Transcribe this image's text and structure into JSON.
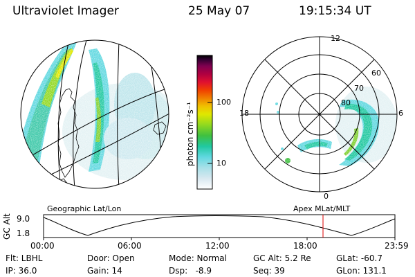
{
  "header": {
    "title": "Ultraviolet Imager",
    "date": "25 May 07",
    "time": "19:15:34 UT"
  },
  "left_panel": {
    "label": "Geographic Lat/Lon"
  },
  "right_panel": {
    "label": "Apex MLat/MLT",
    "mlt_labels": [
      "12",
      "18",
      "6",
      "0"
    ],
    "lat_labels": [
      "60",
      "70",
      "80"
    ]
  },
  "colorbar": {
    "unit_label": "photon cm⁻²s⁻¹",
    "tick_labels": [
      "100",
      "10"
    ],
    "colors": [
      "#ffffff",
      "#d8e8f0",
      "#a8e0e8",
      "#60d8e0",
      "#20c8a0",
      "#40c040",
      "#80d020",
      "#c0e000",
      "#f0e000",
      "#f0b000",
      "#f08000",
      "#f04000",
      "#e01030",
      "#b00040",
      "#800050",
      "#400040",
      "#000000"
    ]
  },
  "timeline": {
    "ylabel": "GC Alt",
    "y_ticks": [
      "9.0",
      "1.8"
    ],
    "x_ticks": [
      "00:00",
      "06:00",
      "12:00",
      "18:00",
      "23:59"
    ],
    "marker_color": "#dd0000"
  },
  "info": {
    "flt": "Flt: LBHL",
    "ip": "IP: 36.0",
    "door": "Door: Open",
    "gain": "Gain: 14",
    "mode": "Mode: Normal",
    "dsp": "Dsp:   -8.9",
    "gc_alt": "GC Alt: 5.2 Re",
    "seq": "Seq: 39",
    "glat": "GLat: -60.7",
    "glon": "GLon: 131.1"
  }
}
